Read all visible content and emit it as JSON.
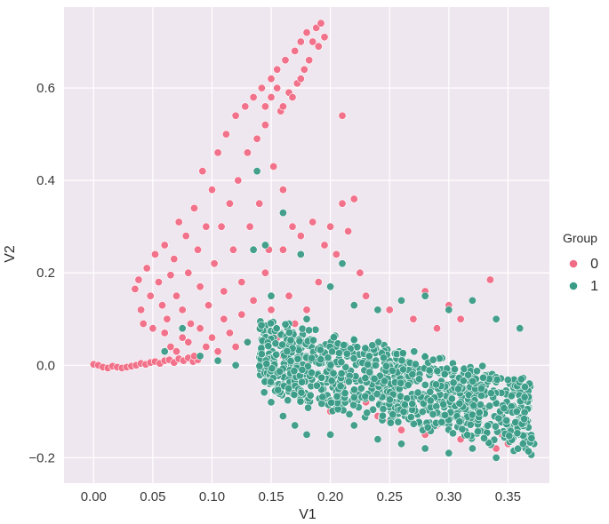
{
  "chart_data": {
    "type": "scatter",
    "title": "",
    "xlabel": "V1",
    "ylabel": "V2",
    "xlim": [
      -0.025,
      0.385
    ],
    "ylim": [
      -0.255,
      0.775
    ],
    "x_ticks": [
      "0.00",
      "0.05",
      "0.10",
      "0.15",
      "0.20",
      "0.25",
      "0.30",
      "0.35"
    ],
    "x_tick_values": [
      0.0,
      0.05,
      0.1,
      0.15,
      0.2,
      0.25,
      0.3,
      0.35
    ],
    "y_ticks": [
      "−0.2",
      "0.0",
      "0.2",
      "0.4",
      "0.6"
    ],
    "y_tick_values": [
      -0.2,
      0.0,
      0.2,
      0.4,
      0.6
    ],
    "grid": true,
    "background": "#efe7ef",
    "legend": {
      "title": "Group",
      "placement": "right",
      "entries": [
        {
          "label": "0",
          "color": "#f06c84"
        },
        {
          "label": "1",
          "color": "#3a9c87"
        }
      ]
    },
    "series": [
      {
        "name": "0",
        "color": "#f06c84",
        "points": [
          [
            0.0,
            0.002
          ],
          [
            0.004,
            0.0
          ],
          [
            0.008,
            -0.004
          ],
          [
            0.012,
            -0.006
          ],
          [
            0.016,
            -0.002
          ],
          [
            0.02,
            -0.004
          ],
          [
            0.024,
            -0.006
          ],
          [
            0.028,
            -0.004
          ],
          [
            0.032,
            -0.002
          ],
          [
            0.036,
            0.0
          ],
          [
            0.04,
            0.004
          ],
          [
            0.044,
            0.002
          ],
          [
            0.048,
            0.006
          ],
          [
            0.052,
            0.008
          ],
          [
            0.056,
            0.004
          ],
          [
            0.06,
            0.01
          ],
          [
            0.064,
            0.012
          ],
          [
            0.068,
            0.006
          ],
          [
            0.072,
            0.014
          ],
          [
            0.076,
            0.01
          ],
          [
            0.08,
            0.016
          ],
          [
            0.084,
            0.008
          ],
          [
            0.088,
            0.012
          ],
          [
            0.035,
            0.165
          ],
          [
            0.038,
            0.185
          ],
          [
            0.04,
            0.12
          ],
          [
            0.042,
            0.09
          ],
          [
            0.045,
            0.21
          ],
          [
            0.048,
            0.15
          ],
          [
            0.05,
            0.08
          ],
          [
            0.052,
            0.24
          ],
          [
            0.055,
            0.18
          ],
          [
            0.058,
            0.13
          ],
          [
            0.06,
            0.26
          ],
          [
            0.062,
            0.1
          ],
          [
            0.065,
            0.195
          ],
          [
            0.068,
            0.23
          ],
          [
            0.07,
            0.15
          ],
          [
            0.072,
            0.31
          ],
          [
            0.075,
            0.12
          ],
          [
            0.078,
            0.28
          ],
          [
            0.08,
            0.2
          ],
          [
            0.082,
            0.09
          ],
          [
            0.085,
            0.34
          ],
          [
            0.088,
            0.25
          ],
          [
            0.09,
            0.17
          ],
          [
            0.092,
            0.42
          ],
          [
            0.095,
            0.3
          ],
          [
            0.097,
            0.13
          ],
          [
            0.1,
            0.38
          ],
          [
            0.102,
            0.22
          ],
          [
            0.105,
            0.46
          ],
          [
            0.108,
            0.3
          ],
          [
            0.11,
            0.16
          ],
          [
            0.112,
            0.5
          ],
          [
            0.115,
            0.35
          ],
          [
            0.118,
            0.25
          ],
          [
            0.12,
            0.54
          ],
          [
            0.122,
            0.4
          ],
          [
            0.125,
            0.18
          ],
          [
            0.128,
            0.56
          ],
          [
            0.13,
            0.46
          ],
          [
            0.132,
            0.3
          ],
          [
            0.135,
            0.58
          ],
          [
            0.138,
            0.49
          ],
          [
            0.14,
            0.35
          ],
          [
            0.142,
            0.6
          ],
          [
            0.145,
            0.52
          ],
          [
            0.148,
            0.25
          ],
          [
            0.15,
            0.62
          ],
          [
            0.152,
            0.43
          ],
          [
            0.155,
            0.64
          ],
          [
            0.158,
            0.55
          ],
          [
            0.16,
            0.38
          ],
          [
            0.162,
            0.66
          ],
          [
            0.165,
            0.59
          ],
          [
            0.168,
            0.3
          ],
          [
            0.17,
            0.68
          ],
          [
            0.172,
            0.61
          ],
          [
            0.175,
            0.7
          ],
          [
            0.178,
            0.64
          ],
          [
            0.18,
            0.72
          ],
          [
            0.182,
            0.66
          ],
          [
            0.185,
            0.7
          ],
          [
            0.188,
            0.73
          ],
          [
            0.19,
            0.69
          ],
          [
            0.192,
            0.74
          ],
          [
            0.195,
            0.71
          ],
          [
            0.175,
            0.62
          ],
          [
            0.168,
            0.58
          ],
          [
            0.16,
            0.56
          ],
          [
            0.155,
            0.6
          ],
          [
            0.15,
            0.58
          ],
          [
            0.145,
            0.56
          ],
          [
            0.06,
            0.07
          ],
          [
            0.065,
            0.04
          ],
          [
            0.07,
            0.03
          ],
          [
            0.075,
            0.06
          ],
          [
            0.08,
            0.05
          ],
          [
            0.085,
            0.02
          ],
          [
            0.09,
            0.08
          ],
          [
            0.095,
            0.04
          ],
          [
            0.1,
            0.06
          ],
          [
            0.105,
            0.03
          ],
          [
            0.11,
            0.1
          ],
          [
            0.115,
            0.07
          ],
          [
            0.12,
            0.04
          ],
          [
            0.125,
            0.11
          ],
          [
            0.13,
            0.05
          ],
          [
            0.135,
            0.14
          ],
          [
            0.14,
            0.08
          ],
          [
            0.145,
            0.2
          ],
          [
            0.15,
            0.12
          ],
          [
            0.155,
            0.06
          ],
          [
            0.16,
            0.25
          ],
          [
            0.165,
            0.15
          ],
          [
            0.17,
            0.09
          ],
          [
            0.175,
            0.28
          ],
          [
            0.18,
            0.12
          ],
          [
            0.185,
            0.31
          ],
          [
            0.19,
            0.18
          ],
          [
            0.195,
            0.26
          ],
          [
            0.2,
            0.3
          ],
          [
            0.205,
            0.24
          ],
          [
            0.21,
            0.35
          ],
          [
            0.215,
            0.29
          ],
          [
            0.22,
            0.36
          ],
          [
            0.225,
            0.2
          ],
          [
            0.23,
            0.15
          ],
          [
            0.21,
            0.54
          ],
          [
            0.25,
            0.12
          ],
          [
            0.27,
            0.1
          ],
          [
            0.29,
            0.08
          ],
          [
            0.31,
            0.1
          ],
          [
            0.335,
            0.185
          ],
          [
            0.28,
            0.16
          ],
          [
            0.3,
            0.13
          ],
          [
            0.23,
            -0.08
          ],
          [
            0.24,
            -0.11
          ],
          [
            0.25,
            -0.12
          ],
          [
            0.26,
            -0.14
          ],
          [
            0.27,
            -0.09
          ],
          [
            0.28,
            -0.15
          ],
          [
            0.29,
            -0.13
          ],
          [
            0.3,
            -0.11
          ],
          [
            0.31,
            -0.16
          ],
          [
            0.32,
            -0.12
          ],
          [
            0.33,
            -0.14
          ],
          [
            0.34,
            -0.18
          ],
          [
            0.345,
            -0.15
          ],
          [
            0.35,
            -0.17
          ],
          [
            0.22,
            -0.06
          ],
          [
            0.21,
            -0.04
          ],
          [
            0.2,
            -0.1
          ],
          [
            0.19,
            -0.02
          ],
          [
            0.18,
            0.0
          ],
          [
            0.17,
            0.01
          ],
          [
            0.16,
            0.02
          ]
        ]
      },
      {
        "name": "1",
        "color": "#3a9c87",
        "points": [
          [
            0.06,
            0.03
          ],
          [
            0.075,
            0.08
          ],
          [
            0.09,
            0.02
          ],
          [
            0.105,
            0.01
          ],
          [
            0.12,
            0.0
          ],
          [
            0.13,
            0.05
          ],
          [
            0.135,
            0.25
          ],
          [
            0.138,
            0.42
          ],
          [
            0.145,
            0.26
          ],
          [
            0.15,
            0.15
          ],
          [
            0.16,
            0.33
          ],
          [
            0.165,
            0.09
          ],
          [
            0.175,
            0.24
          ],
          [
            0.18,
            0.1
          ],
          [
            0.2,
            0.17
          ],
          [
            0.21,
            0.22
          ],
          [
            0.22,
            0.13
          ],
          [
            0.24,
            0.12
          ],
          [
            0.26,
            0.14
          ],
          [
            0.28,
            0.15
          ],
          [
            0.3,
            0.12
          ],
          [
            0.32,
            0.14
          ],
          [
            0.34,
            0.1
          ],
          [
            0.36,
            0.08
          ],
          [
            0.15,
            -0.08
          ],
          [
            0.16,
            -0.11
          ],
          [
            0.17,
            -0.13
          ],
          [
            0.18,
            -0.15
          ],
          [
            0.2,
            -0.15
          ],
          [
            0.22,
            -0.13
          ],
          [
            0.24,
            -0.16
          ],
          [
            0.26,
            -0.17
          ],
          [
            0.28,
            -0.18
          ],
          [
            0.3,
            -0.19
          ],
          [
            0.32,
            -0.18
          ],
          [
            0.34,
            -0.2
          ],
          [
            0.355,
            -0.185
          ],
          [
            0.365,
            -0.18
          ],
          [
            0.372,
            -0.17
          ],
          [
            0.36,
            -0.15
          ],
          [
            0.35,
            -0.13
          ],
          [
            0.345,
            -0.11
          ],
          [
            0.34,
            -0.08
          ],
          [
            0.33,
            -0.06
          ]
        ]
      }
    ]
  }
}
